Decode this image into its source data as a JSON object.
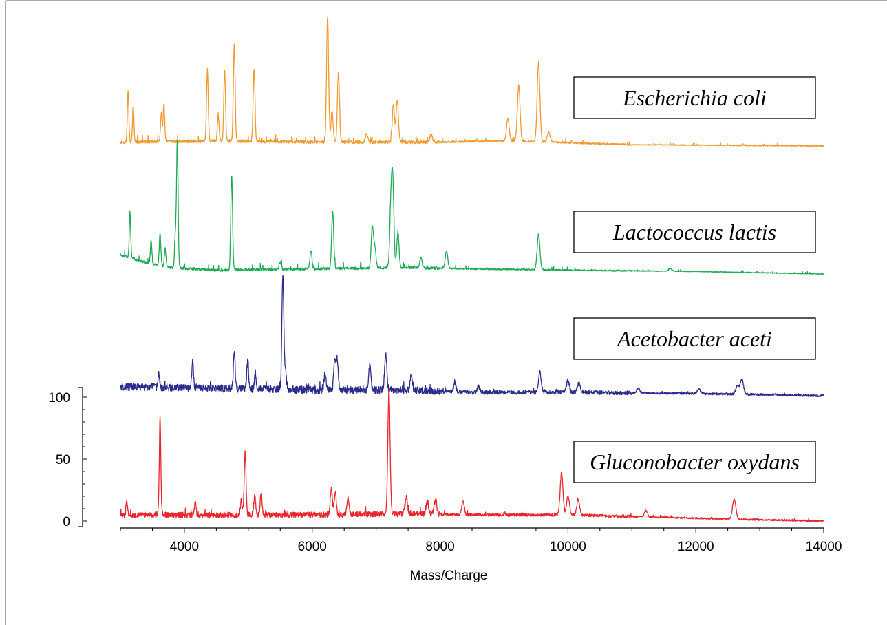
{
  "chart_data": {
    "type": "line",
    "title": "",
    "xlabel": "Mass/Charge",
    "ylabel": "",
    "xlim": [
      3000,
      14000
    ],
    "ylim": [
      0,
      100
    ],
    "x_ticks": [
      4000,
      6000,
      8000,
      10000,
      12000,
      14000
    ],
    "y_ticks": [
      0,
      50,
      100
    ],
    "legend_placement": "boxed labels right of each trace",
    "grid": false,
    "series": [
      {
        "name": "Escherichia coli",
        "color": "#F2992E",
        "baseline": [
          [
            3000,
            3
          ],
          [
            4500,
            4
          ],
          [
            6000,
            3
          ],
          [
            7000,
            3
          ],
          [
            8000,
            3
          ],
          [
            9000,
            4
          ],
          [
            9800,
            3
          ],
          [
            11000,
            1
          ],
          [
            14000,
            0
          ]
        ],
        "peaks": [
          [
            3120,
            42
          ],
          [
            3200,
            28
          ],
          [
            3640,
            23
          ],
          [
            3680,
            30
          ],
          [
            4360,
            57
          ],
          [
            4530,
            20
          ],
          [
            4630,
            56
          ],
          [
            4780,
            77
          ],
          [
            5090,
            58
          ],
          [
            6240,
            100
          ],
          [
            6310,
            25
          ],
          [
            6410,
            56
          ],
          [
            6850,
            7
          ],
          [
            7270,
            30
          ],
          [
            7330,
            34
          ],
          [
            7860,
            7
          ],
          [
            9060,
            18
          ],
          [
            9230,
            45
          ],
          [
            9540,
            63
          ],
          [
            9700,
            8
          ]
        ]
      },
      {
        "name": "Lactococcus lactis",
        "color": "#1FAA55",
        "baseline": [
          [
            3000,
            15
          ],
          [
            3400,
            9
          ],
          [
            3800,
            5
          ],
          [
            4500,
            3
          ],
          [
            6000,
            4
          ],
          [
            7500,
            5
          ],
          [
            8500,
            4
          ],
          [
            10000,
            3
          ],
          [
            12000,
            2
          ],
          [
            14000,
            0
          ]
        ],
        "peaks": [
          [
            3150,
            35
          ],
          [
            3480,
            18
          ],
          [
            3620,
            25
          ],
          [
            3700,
            14
          ],
          [
            3860,
            25
          ],
          [
            3890,
            100
          ],
          [
            4740,
            75
          ],
          [
            5500,
            6
          ],
          [
            5980,
            15
          ],
          [
            6320,
            45
          ],
          [
            6940,
            33
          ],
          [
            6980,
            16
          ],
          [
            7230,
            45
          ],
          [
            7260,
            65
          ],
          [
            7340,
            27
          ],
          [
            7700,
            8
          ],
          [
            8100,
            14
          ],
          [
            9540,
            28
          ],
          [
            11600,
            2
          ]
        ]
      },
      {
        "name": "Acetobacter aceti",
        "color": "#2B2C8C",
        "baseline": [
          [
            3000,
            8
          ],
          [
            4000,
            7
          ],
          [
            6000,
            5
          ],
          [
            7500,
            5
          ],
          [
            8500,
            3
          ],
          [
            10000,
            3
          ],
          [
            12000,
            2
          ],
          [
            14000,
            0
          ]
        ],
        "peaks": [
          [
            3600,
            13
          ],
          [
            4130,
            24
          ],
          [
            4780,
            31
          ],
          [
            4990,
            24
          ],
          [
            5110,
            14
          ],
          [
            5540,
            100
          ],
          [
            5580,
            16
          ],
          [
            6200,
            14
          ],
          [
            6350,
            23
          ],
          [
            6390,
            28
          ],
          [
            6900,
            22
          ],
          [
            7150,
            31
          ],
          [
            7550,
            14
          ],
          [
            8230,
            8
          ],
          [
            8600,
            5
          ],
          [
            9560,
            18
          ],
          [
            10000,
            10
          ],
          [
            10170,
            8
          ],
          [
            11100,
            4
          ],
          [
            12050,
            4
          ],
          [
            12650,
            7
          ],
          [
            12720,
            13
          ]
        ]
      },
      {
        "name": "Gluconobacter oxydans",
        "color": "#E8262D",
        "baseline": [
          [
            3000,
            5
          ],
          [
            4000,
            5
          ],
          [
            6000,
            5
          ],
          [
            7500,
            6
          ],
          [
            8500,
            5
          ],
          [
            10000,
            5
          ],
          [
            11500,
            3
          ],
          [
            13000,
            1
          ],
          [
            14000,
            0
          ]
        ],
        "peaks": [
          [
            3100,
            12
          ],
          [
            3620,
            78
          ],
          [
            4170,
            10
          ],
          [
            4890,
            12
          ],
          [
            4950,
            50
          ],
          [
            5100,
            15
          ],
          [
            5200,
            18
          ],
          [
            6300,
            20
          ],
          [
            6360,
            18
          ],
          [
            6560,
            13
          ],
          [
            7200,
            100
          ],
          [
            7470,
            13
          ],
          [
            7800,
            10
          ],
          [
            7930,
            12
          ],
          [
            8360,
            11
          ],
          [
            9900,
            34
          ],
          [
            10000,
            15
          ],
          [
            10160,
            12
          ],
          [
            11220,
            5
          ],
          [
            12600,
            16
          ]
        ]
      }
    ]
  }
}
